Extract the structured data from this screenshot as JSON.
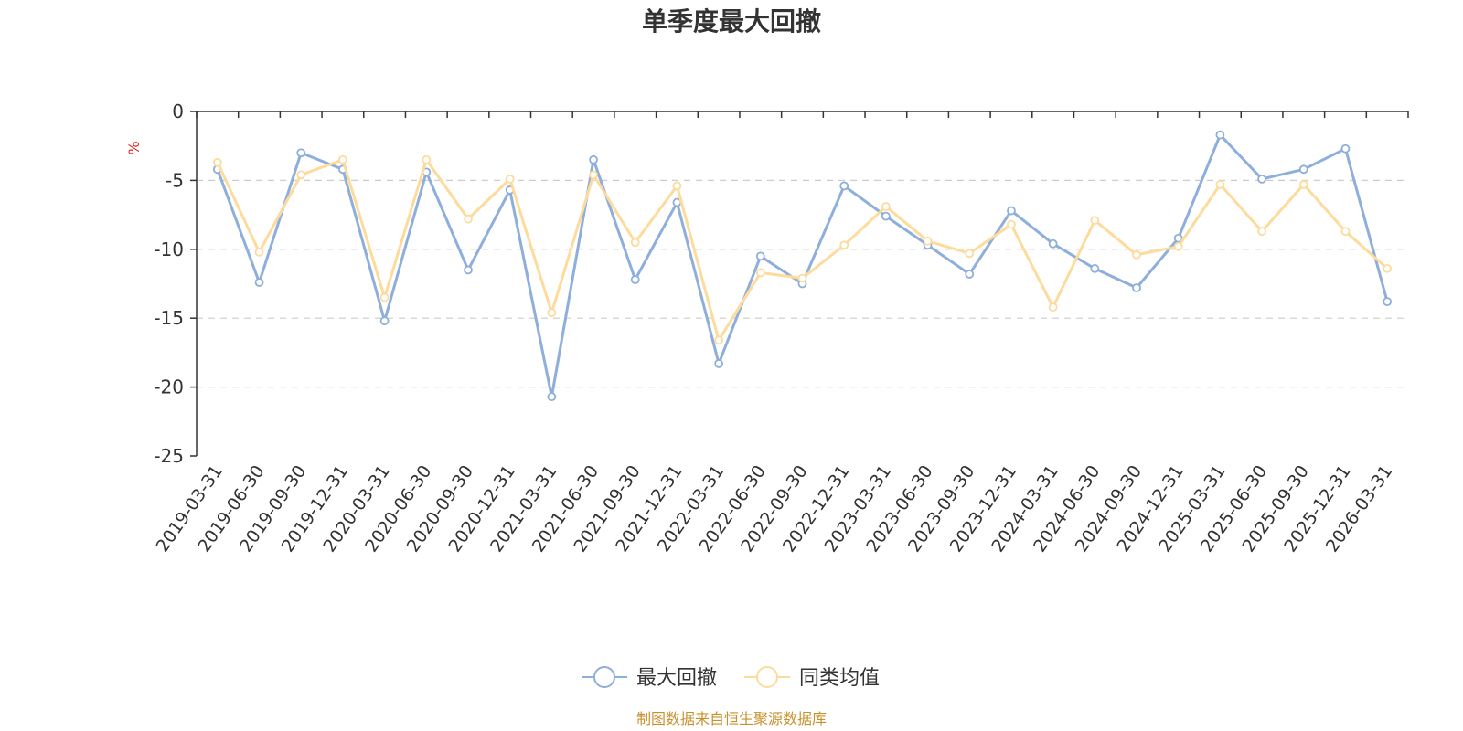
{
  "chart_data": {
    "type": "line",
    "title": "单季度最大回撤",
    "ylabel": "%",
    "ylim": [
      -25,
      0
    ],
    "yticks": [
      0,
      -5,
      -10,
      -15,
      -20,
      -25
    ],
    "grid": true,
    "legend_position": "bottom-center",
    "categories": [
      "2019-03-31",
      "2019-06-30",
      "2019-09-30",
      "2019-12-31",
      "2020-03-31",
      "2020-06-30",
      "2020-09-30",
      "2020-12-31",
      "2021-03-31",
      "2021-06-30",
      "2021-09-30",
      "2021-12-31",
      "2022-03-31",
      "2022-06-30",
      "2022-09-30",
      "2022-12-31",
      "2023-03-31",
      "2023-06-30",
      "2023-09-30",
      "2023-12-31",
      "2024-03-31",
      "2024-06-30",
      "2024-09-30",
      "2024-12-31",
      "2025-03-31",
      "2025-06-30",
      "2025-09-30",
      "2025-12-31",
      "2026-03-31"
    ],
    "series": [
      {
        "name": "最大回撤",
        "color": "#8eaedb",
        "values": [
          -4.2,
          -12.4,
          -3.0,
          -4.2,
          -15.2,
          -4.4,
          -11.5,
          -5.7,
          -20.7,
          -3.5,
          -12.2,
          -6.6,
          -18.3,
          -10.5,
          -12.5,
          -5.4,
          -7.6,
          -9.7,
          -11.8,
          -7.2,
          -9.6,
          -11.4,
          -12.8,
          -9.2,
          -1.7,
          -4.9,
          -4.2,
          -2.7,
          -13.8
        ]
      },
      {
        "name": "同类均值",
        "color": "#fddb9c",
        "values": [
          -3.7,
          -10.2,
          -4.6,
          -3.5,
          -13.5,
          -3.5,
          -7.8,
          -4.9,
          -14.6,
          -4.6,
          -9.5,
          -5.4,
          -16.6,
          -11.7,
          -12.1,
          -9.7,
          -6.9,
          -9.4,
          -10.3,
          -8.2,
          -14.2,
          -7.9,
          -10.4,
          -9.8,
          -5.3,
          -8.7,
          -5.3,
          -8.7,
          -11.4
        ]
      }
    ]
  },
  "footer": {
    "source": "制图数据来自恒生聚源数据库",
    "source_color": "#c9902b"
  },
  "style": {
    "unit_color": "#e02020",
    "grid_color": "#cccccc",
    "axis_color": "#333333"
  }
}
